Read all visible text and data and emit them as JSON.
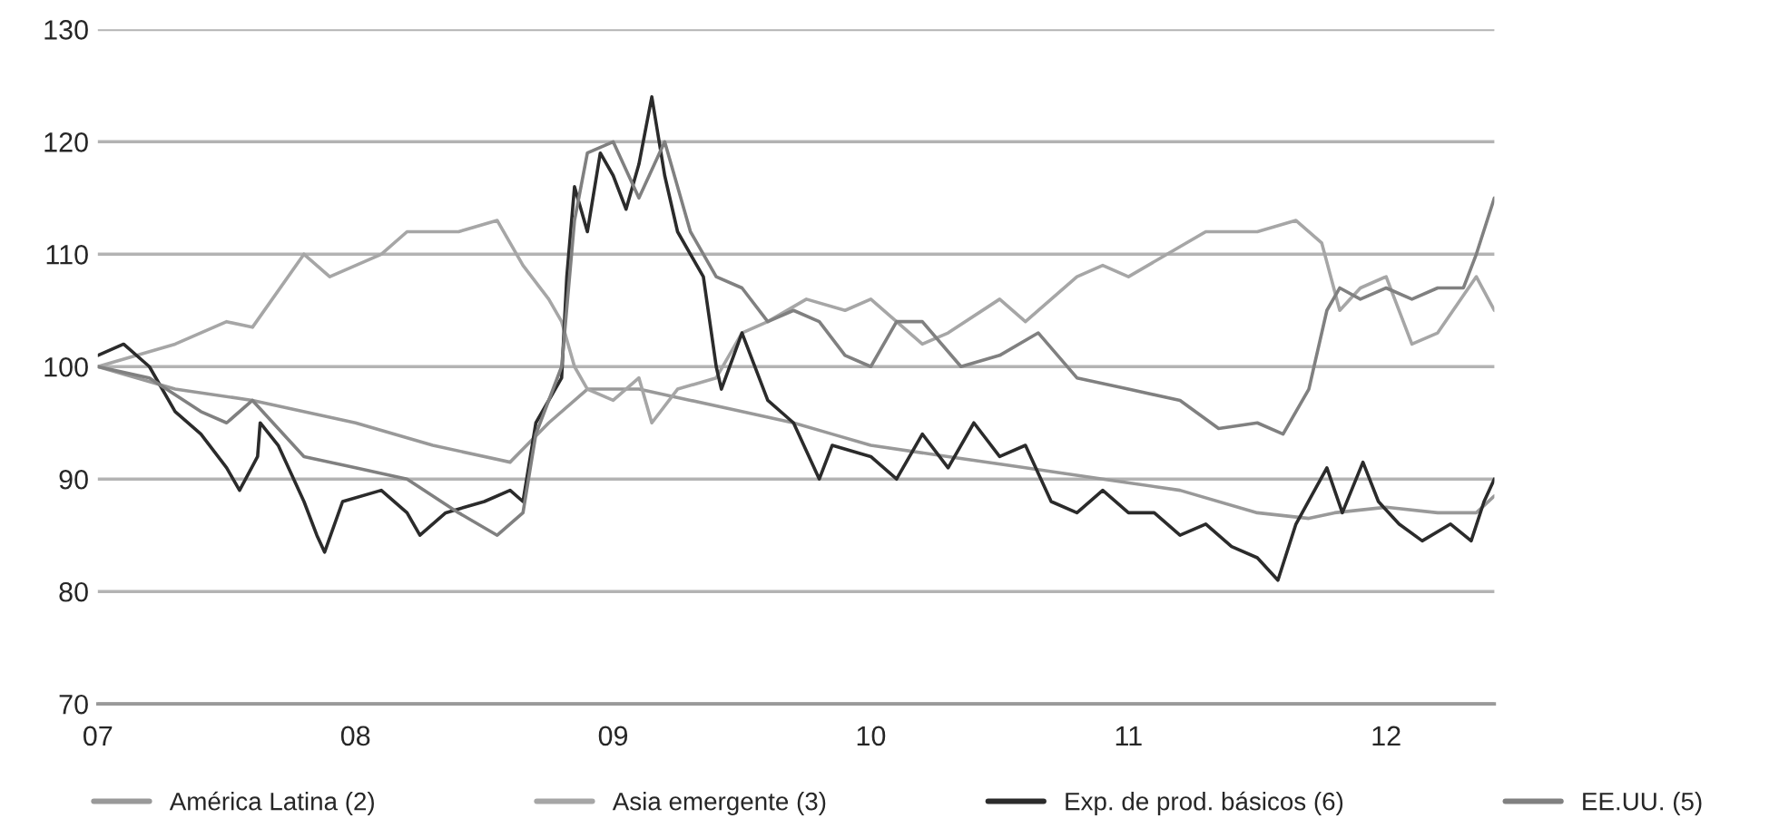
{
  "chart_data": {
    "type": "line",
    "xlim": [
      7,
      12.42
    ],
    "ylim": [
      70,
      130
    ],
    "xticks": [
      {
        "value": 7,
        "label": "07"
      },
      {
        "value": 8,
        "label": "08"
      },
      {
        "value": 9,
        "label": "09"
      },
      {
        "value": 10,
        "label": "10"
      },
      {
        "value": 11,
        "label": "11"
      },
      {
        "value": 12,
        "label": "12"
      }
    ],
    "yticks": [
      70,
      80,
      90,
      100,
      110,
      120,
      130
    ],
    "grid": "y",
    "legend": "bottom",
    "marker": "none",
    "line_style": "solid",
    "series": [
      {
        "name": "América Latina (2)",
        "color": "#999999",
        "x": [
          7.0,
          7.3,
          7.6,
          8.0,
          8.3,
          8.6,
          8.75,
          8.9,
          9.1,
          9.3,
          9.5,
          9.7,
          9.85,
          10.0,
          10.3,
          10.6,
          10.9,
          11.2,
          11.5,
          11.7,
          11.8,
          12.0,
          12.2,
          12.35,
          12.42
        ],
        "values": [
          100,
          98,
          97,
          95,
          93,
          91.5,
          95,
          98,
          98,
          97,
          96,
          95,
          94,
          93,
          92,
          91,
          90,
          89,
          87,
          86.5,
          87,
          87.5,
          87,
          87,
          88.5
        ]
      },
      {
        "name": "Asia emergente (3)",
        "color": "#a6a6a6",
        "x": [
          7.0,
          7.3,
          7.5,
          7.6,
          7.8,
          7.9,
          8.1,
          8.2,
          8.4,
          8.55,
          8.65,
          8.75,
          8.8,
          8.85,
          8.9,
          9.0,
          9.1,
          9.15,
          9.25,
          9.4,
          9.5,
          9.6,
          9.75,
          9.9,
          10.0,
          10.1,
          10.2,
          10.3,
          10.5,
          10.6,
          10.8,
          10.9,
          11.0,
          11.15,
          11.3,
          11.5,
          11.65,
          11.75,
          11.82,
          11.9,
          12.0,
          12.1,
          12.2,
          12.35,
          12.42
        ],
        "values": [
          100,
          102,
          104,
          103.5,
          110,
          108,
          110,
          112,
          112,
          113,
          109,
          106,
          104,
          100,
          98,
          97,
          99,
          95,
          98,
          99,
          103,
          104,
          106,
          105,
          106,
          104,
          102,
          103,
          106,
          104,
          108,
          109,
          108,
          110,
          112,
          112,
          113,
          111,
          105,
          107,
          108,
          102,
          103,
          108,
          105
        ]
      },
      {
        "name": "Exp. de prod. básicos (6)",
        "color": "#2b2b2b",
        "x": [
          7.0,
          7.1,
          7.2,
          7.3,
          7.4,
          7.5,
          7.55,
          7.62,
          7.63,
          7.7,
          7.8,
          7.85,
          7.88,
          7.95,
          8.1,
          8.2,
          8.25,
          8.35,
          8.5,
          8.6,
          8.65,
          8.7,
          8.8,
          8.82,
          8.85,
          8.9,
          8.95,
          9.0,
          9.05,
          9.1,
          9.15,
          9.2,
          9.25,
          9.35,
          9.4,
          9.42,
          9.5,
          9.6,
          9.7,
          9.8,
          9.85,
          10.0,
          10.1,
          10.2,
          10.3,
          10.4,
          10.5,
          10.6,
          10.7,
          10.8,
          10.9,
          11.0,
          11.1,
          11.2,
          11.3,
          11.4,
          11.5,
          11.58,
          11.65,
          11.77,
          11.83,
          11.91,
          11.97,
          12.05,
          12.14,
          12.25,
          12.33,
          12.38,
          12.42
        ],
        "values": [
          101,
          102,
          100,
          96,
          94,
          91,
          89,
          92,
          95,
          93,
          88,
          85,
          83.5,
          88,
          89,
          87,
          85,
          87,
          88,
          89,
          88,
          95,
          99,
          108,
          116,
          112,
          119,
          117,
          114,
          118,
          124,
          117,
          112,
          108,
          100,
          98,
          103,
          97,
          95,
          90,
          93,
          92,
          90,
          94,
          91,
          95,
          92,
          93,
          88,
          87,
          89,
          87,
          87,
          85,
          86,
          84,
          83,
          81,
          86,
          91,
          87,
          91.5,
          88,
          86,
          84.5,
          86,
          84.5,
          88,
          90
        ]
      },
      {
        "name": "EE.UU. (5)",
        "color": "#808080",
        "x": [
          7.0,
          7.2,
          7.4,
          7.5,
          7.6,
          7.8,
          8.0,
          8.2,
          8.4,
          8.55,
          8.65,
          8.7,
          8.8,
          8.85,
          8.9,
          9.0,
          9.1,
          9.2,
          9.3,
          9.4,
          9.5,
          9.6,
          9.7,
          9.8,
          9.9,
          10.0,
          10.1,
          10.2,
          10.35,
          10.5,
          10.65,
          10.8,
          11.0,
          11.2,
          11.35,
          11.5,
          11.6,
          11.7,
          11.77,
          11.82,
          11.9,
          12.0,
          12.1,
          12.2,
          12.3,
          12.35,
          12.42
        ],
        "values": [
          100,
          99,
          96,
          95,
          97,
          92,
          91,
          90,
          87,
          85,
          87,
          94,
          100,
          113,
          119,
          120,
          115,
          120,
          112,
          108,
          107,
          104,
          105,
          104,
          101,
          100,
          104,
          104,
          100,
          101,
          103,
          99,
          98,
          97,
          94.5,
          95,
          94,
          98,
          105,
          107,
          106,
          107,
          106,
          107,
          107,
          110,
          115
        ]
      }
    ]
  }
}
